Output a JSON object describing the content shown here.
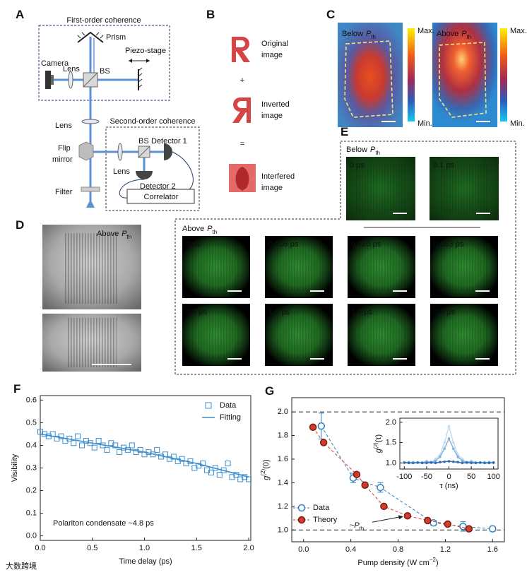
{
  "panels": {
    "A": {
      "label": "A",
      "first_order_title": "First-order coherence",
      "second_order_title": "Second-order coherence",
      "prism": "Prism",
      "camera": "Camera",
      "lens_1": "Lens",
      "bs_1": "BS",
      "piezo": "Piezo-stage",
      "lens_2": "Lens",
      "flip_mirror": [
        "Flip",
        "mirror"
      ],
      "bs_2": "BS",
      "detector_1": "Detector 1",
      "lens_3": "Lens",
      "filter": "Filter",
      "detector_2": "Detector 2",
      "correlator": "Correlator"
    },
    "B": {
      "label": "B",
      "items": [
        [
          "Original",
          "image"
        ],
        [
          "Inverted",
          "image"
        ],
        [
          "Interfered",
          "image"
        ]
      ],
      "operators": [
        "+",
        "="
      ]
    },
    "C": {
      "label": "C",
      "images": [
        {
          "state": "Below",
          "symbol": "P",
          "sub": "th",
          "max": "Max.",
          "min": "Min."
        },
        {
          "state": "Above",
          "symbol": "P",
          "sub": "th",
          "max": "Max.",
          "min": "Min."
        }
      ]
    },
    "D": {
      "label": "D",
      "state": "Above",
      "symbol": "P",
      "sub": "th"
    },
    "E": {
      "label": "E",
      "below": {
        "state": "Below",
        "symbol": "P",
        "sub": "th",
        "frames": [
          "0 ps",
          "0.1 ps"
        ]
      },
      "above": {
        "state": "Above",
        "symbol": "P",
        "sub": "th",
        "frames": [
          "0 ps",
          "0.006 ps",
          "0.020 ps",
          "0.033 ps",
          "0.5 ps",
          "1.0 ps",
          "1.5 ps",
          "2.0 ps"
        ]
      }
    }
  },
  "chart_data": [
    {
      "type": "scatter",
      "panel_label": "F",
      "x_label": "Time delay (ps)",
      "y_label": "Visibility",
      "annotation": "Polariton condensate ~4.8 ps",
      "legend": "upper right",
      "xlim": [
        0,
        2.02
      ],
      "ylim": [
        -0.02,
        0.62
      ],
      "xticks": [
        {
          "value": 0,
          "label": "0.0"
        },
        0.5,
        {
          "value": 1,
          "label": "1.0"
        },
        1.5,
        {
          "value": 2,
          "label": "2.0"
        }
      ],
      "yticks": [
        {
          "value": 0,
          "label": "0.0"
        },
        0.1,
        0.2,
        0.3,
        0.4,
        0.5,
        0.6
      ],
      "series": [
        {
          "name": "Data",
          "color": "#3b8fd1",
          "marker": "square",
          "x": [
            0,
            0.04,
            0.08,
            0.12,
            0.16,
            0.2,
            0.24,
            0.28,
            0.32,
            0.36,
            0.4,
            0.44,
            0.48,
            0.52,
            0.56,
            0.6,
            0.64,
            0.68,
            0.72,
            0.76,
            0.8,
            0.84,
            0.88,
            0.92,
            0.96,
            1,
            1.04,
            1.08,
            1.12,
            1.16,
            1.2,
            1.24,
            1.28,
            1.32,
            1.36,
            1.4,
            1.44,
            1.48,
            1.52,
            1.56,
            1.6,
            1.64,
            1.68,
            1.72,
            1.76,
            1.8,
            1.84,
            1.88,
            1.92,
            1.96,
            2
          ],
          "values": [
            0.46,
            0.45,
            0.44,
            0.45,
            0.43,
            0.44,
            0.42,
            0.43,
            0.41,
            0.44,
            0.4,
            0.42,
            0.41,
            0.39,
            0.42,
            0.4,
            0.38,
            0.41,
            0.4,
            0.37,
            0.39,
            0.38,
            0.4,
            0.37,
            0.38,
            0.36,
            0.37,
            0.36,
            0.38,
            0.35,
            0.36,
            0.34,
            0.35,
            0.33,
            0.34,
            0.32,
            0.33,
            0.3,
            0.31,
            0.32,
            0.29,
            0.28,
            0.3,
            0.27,
            0.29,
            0.32,
            0.26,
            0.27,
            0.25,
            0.26,
            0.25
          ]
        },
        {
          "name": "Fitting",
          "color": "#3b8fd1",
          "style": "line",
          "x": [
            0,
            0.25,
            0.5,
            0.75,
            1,
            1.25,
            1.5,
            1.75,
            2
          ],
          "values": [
            0.45,
            0.43,
            0.41,
            0.39,
            0.37,
            0.345,
            0.32,
            0.29,
            0.26
          ]
        }
      ]
    },
    {
      "type": "scatter",
      "panel_label": "G",
      "legend": "lower left",
      "x_label": {
        "text": "Pump density (W cm",
        "sup": "−2",
        "tail": ")"
      },
      "y_label": {
        "base": "g",
        "sup": "(2)",
        "tail": "(0)"
      },
      "annotation": {
        "prefix": "~",
        "symbol": "P",
        "sub": "th"
      },
      "xlim": [
        -0.1,
        1.7
      ],
      "ylim": [
        0.9,
        2.12
      ],
      "xticks": [
        {
          "value": 0,
          "label": "0.0"
        },
        0.4,
        0.8,
        1.2,
        1.6
      ],
      "yticks": [
        {
          "value": 1,
          "label": "1.0"
        },
        1.2,
        1.4,
        1.6,
        1.8,
        {
          "value": 2,
          "label": "2.0"
        }
      ],
      "hlines": [
        1.0,
        2.0
      ],
      "series": [
        {
          "name": "Data",
          "color": "#2f7fc1",
          "marker": "open-circle",
          "x": [
            0.15,
            0.42,
            0.65,
            1.1,
            1.35,
            1.6
          ],
          "values": [
            1.88,
            1.44,
            1.36,
            1.06,
            1.03,
            1.01
          ],
          "errors": [
            0.11,
            0.04,
            0.04,
            0.02,
            0.04,
            0.02
          ]
        },
        {
          "name": "Theory",
          "color": "#d33b2c",
          "marker": "filled-circle",
          "x": [
            0.08,
            0.17,
            0.45,
            0.52,
            0.68,
            0.88,
            1.05,
            1.22,
            1.4
          ],
          "values": [
            1.87,
            1.74,
            1.47,
            1.38,
            1.2,
            1.12,
            1.08,
            1.05,
            1.01
          ]
        }
      ]
    },
    {
      "type": "line",
      "x_label": "τ (ns)",
      "y_label": {
        "base": "g",
        "sup": "(2)",
        "tail": "(τ)"
      },
      "xlim": [
        -110,
        110
      ],
      "ylim": [
        0.85,
        2.1
      ],
      "xticks": [
        -100,
        -50,
        0,
        50,
        100
      ],
      "yticks": [
        {
          "value": 1,
          "label": "1.0"
        },
        1.5,
        {
          "value": 2,
          "label": "2.0"
        }
      ],
      "x": [
        -100,
        -90,
        -80,
        -70,
        -60,
        -50,
        -40,
        -30,
        -20,
        -10,
        0,
        10,
        20,
        30,
        40,
        50,
        60,
        70,
        80,
        90,
        100
      ],
      "series": [
        {
          "color": "#c3dbf0",
          "values": [
            1.02,
            1.0,
            1.03,
            1.0,
            1.02,
            1.05,
            1.0,
            1.1,
            1.2,
            1.5,
            1.9,
            1.5,
            1.2,
            1.1,
            1.0,
            1.05,
            1.02,
            1.0,
            1.03,
            1.0,
            1.02
          ]
        },
        {
          "color": "#82b3de",
          "values": [
            1.0,
            1.02,
            1.0,
            1.01,
            1.0,
            1.03,
            1.02,
            1.05,
            1.15,
            1.35,
            1.6,
            1.35,
            1.15,
            1.05,
            1.02,
            1.03,
            1.0,
            1.01,
            1.0,
            1.02,
            1.0
          ]
        },
        {
          "color": "#2f6fb0",
          "values": [
            1.01,
            1.0,
            1.0,
            1.01,
            1.0,
            1.0,
            1.01,
            1.0,
            1.02,
            1.03,
            1.04,
            1.03,
            1.02,
            1.0,
            1.01,
            1.0,
            1.0,
            1.01,
            1.0,
            1.0,
            1.01
          ]
        }
      ]
    }
  ],
  "watermark": "大数跨境"
}
